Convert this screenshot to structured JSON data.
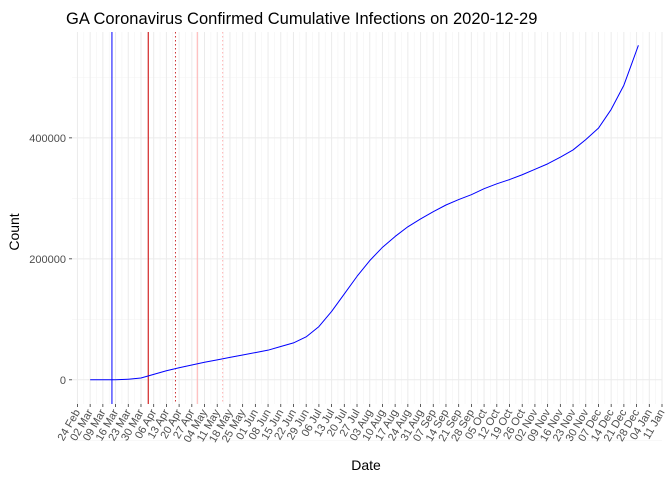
{
  "chart_data": {
    "type": "line",
    "title": "GA Coronavirus Confirmed Cumulative Infections on 2020-12-29",
    "xlabel": "Date",
    "ylabel": "Count",
    "xlim": [
      "2020-02-21",
      "2021-01-11"
    ],
    "ylim": [
      -40000,
      575000
    ],
    "grid": true,
    "legend": "none",
    "x_tick_labels": [
      "24 Feb",
      "02 Mar",
      "09 Mar",
      "16 Mar",
      "23 Mar",
      "30 Mar",
      "06 Apr",
      "13 Apr",
      "20 Apr",
      "27 Apr",
      "04 May",
      "11 May",
      "18 May",
      "25 May",
      "01 Jun",
      "08 Jun",
      "15 Jun",
      "22 Jun",
      "29 Jun",
      "06 Jul",
      "13 Jul",
      "20 Jul",
      "27 Jul",
      "03 Aug",
      "10 Aug",
      "17 Aug",
      "24 Aug",
      "31 Aug",
      "07 Sep",
      "14 Sep",
      "21 Sep",
      "28 Sep",
      "05 Oct",
      "12 Oct",
      "19 Oct",
      "26 Oct",
      "02 Nov",
      "09 Nov",
      "16 Nov",
      "23 Nov",
      "30 Nov",
      "07 Dec",
      "14 Dec",
      "21 Dec",
      "28 Dec",
      "04 Jan",
      "11 Jan"
    ],
    "x_ticks": [
      "2020-02-24",
      "2020-03-02",
      "2020-03-09",
      "2020-03-16",
      "2020-03-23",
      "2020-03-30",
      "2020-04-06",
      "2020-04-13",
      "2020-04-20",
      "2020-04-27",
      "2020-05-04",
      "2020-05-11",
      "2020-05-18",
      "2020-05-25",
      "2020-06-01",
      "2020-06-08",
      "2020-06-15",
      "2020-06-22",
      "2020-06-29",
      "2020-07-06",
      "2020-07-13",
      "2020-07-20",
      "2020-07-27",
      "2020-08-03",
      "2020-08-10",
      "2020-08-17",
      "2020-08-24",
      "2020-08-31",
      "2020-09-07",
      "2020-09-14",
      "2020-09-21",
      "2020-09-28",
      "2020-10-05",
      "2020-10-12",
      "2020-10-19",
      "2020-10-26",
      "2020-11-02",
      "2020-11-09",
      "2020-11-16",
      "2020-11-23",
      "2020-11-30",
      "2020-12-07",
      "2020-12-14",
      "2020-12-21",
      "2020-12-28",
      "2021-01-04",
      "2021-01-11"
    ],
    "y_ticks": [
      0,
      200000,
      400000
    ],
    "y_tick_labels": [
      "0",
      "200000",
      "400000"
    ],
    "series": [
      {
        "color": "#0000ff",
        "x": [
          "2020-03-02",
          "2020-03-09",
          "2020-03-16",
          "2020-03-23",
          "2020-03-30",
          "2020-04-06",
          "2020-04-13",
          "2020-04-20",
          "2020-04-27",
          "2020-05-04",
          "2020-05-11",
          "2020-05-18",
          "2020-05-25",
          "2020-06-01",
          "2020-06-08",
          "2020-06-15",
          "2020-06-22",
          "2020-06-29",
          "2020-07-06",
          "2020-07-13",
          "2020-07-20",
          "2020-07-27",
          "2020-08-03",
          "2020-08-10",
          "2020-08-17",
          "2020-08-24",
          "2020-08-31",
          "2020-09-07",
          "2020-09-14",
          "2020-09-21",
          "2020-09-28",
          "2020-10-05",
          "2020-10-12",
          "2020-10-19",
          "2020-10-26",
          "2020-11-02",
          "2020-11-09",
          "2020-11-16",
          "2020-11-23",
          "2020-11-30",
          "2020-12-07",
          "2020-12-14",
          "2020-12-21",
          "2020-12-25",
          "2020-12-29"
        ],
        "y": [
          2,
          17,
          120,
          1000,
          3000,
          9000,
          15000,
          20000,
          24500,
          29000,
          33000,
          37000,
          41000,
          45000,
          49000,
          55000,
          61000,
          71000,
          88000,
          113000,
          142000,
          171000,
          197000,
          219000,
          237000,
          253000,
          266000,
          278000,
          289000,
          298000,
          306000,
          316000,
          324000,
          331000,
          339000,
          348000,
          357000,
          368000,
          380000,
          397000,
          416000,
          447000,
          487000,
          520000,
          553000
        ]
      }
    ],
    "reference_lines": [
      {
        "x": "2020-03-14",
        "color": "#0000ff",
        "style": "solid"
      },
      {
        "x": "2020-04-03",
        "color": "#cc0000",
        "style": "solid"
      },
      {
        "x": "2020-04-18",
        "color": "#cc3333",
        "style": "dotted"
      },
      {
        "x": "2020-04-30",
        "color": "#ffb0b0",
        "style": "solid"
      },
      {
        "x": "2020-05-14",
        "color": "#ffb0b0",
        "style": "dotted"
      }
    ]
  }
}
